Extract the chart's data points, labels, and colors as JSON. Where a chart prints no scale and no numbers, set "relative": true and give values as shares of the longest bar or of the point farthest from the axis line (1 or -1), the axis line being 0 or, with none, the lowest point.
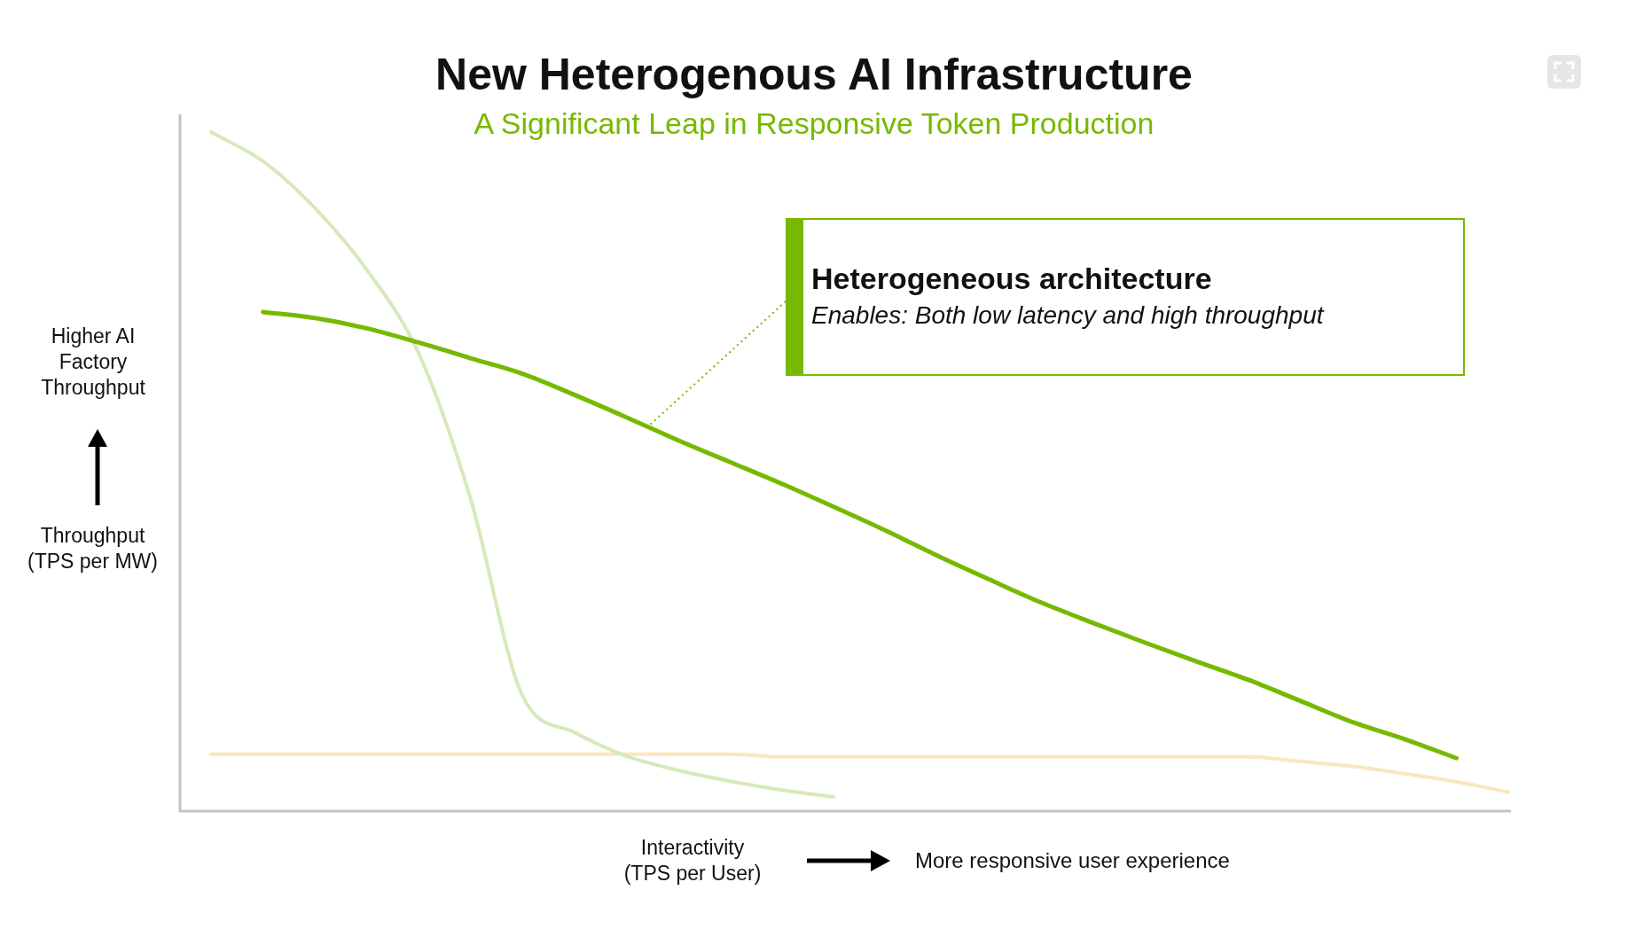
{
  "chart_data": {
    "type": "line",
    "title": "New Heterogenous AI Infrastructure",
    "subtitle": "A Significant Leap in Responsive Token Production",
    "xlabel": "Interactivity (TPS per User)",
    "ylabel": "Throughput (TPS per MW)",
    "annotations": [
      "Higher AI Factory Throughput",
      "More responsive user experience",
      "Heterogeneous architecture",
      "Enables: Both low latency and high throughput"
    ],
    "categories": [
      null,
      null,
      null,
      null,
      null,
      null,
      null,
      null,
      null,
      null,
      null,
      null,
      null,
      null,
      null,
      null,
      null,
      null,
      null,
      null,
      null,
      null,
      null,
      null,
      null,
      null
    ],
    "relative": true,
    "legend": false,
    "marker": "none",
    "tick_labels": false,
    "series": [
      {
        "color": "#fbe6bd",
        "values": [
          0.084,
          0.084,
          0.084,
          0.084,
          0.084,
          0.084,
          0.084,
          0.084,
          0.084,
          0.084,
          0.084,
          0.08,
          0.08,
          0.08,
          0.08,
          0.08,
          0.08,
          0.08,
          0.08,
          0.08,
          0.08,
          0.073,
          0.066,
          0.055,
          0.043,
          0.028
        ]
      },
      {
        "color": "#d6e9bc",
        "values": [
          1,
          0.957,
          0.888,
          0.797,
          0.674,
          0.46,
          0.17,
          0.116,
          0.081,
          0.06,
          0.044,
          0.031,
          0.021,
          null,
          null,
          null,
          null,
          null,
          null,
          null,
          null,
          null,
          null,
          null,
          null,
          null
        ]
      },
      {
        "color": "#76b900",
        "values": [
          null,
          0.735,
          0.726,
          0.711,
          0.69,
          0.667,
          0.644,
          0.613,
          0.58,
          0.546,
          0.514,
          0.482,
          0.448,
          0.413,
          0.376,
          0.341,
          0.307,
          0.277,
          0.248,
          0.22,
          0.193,
          0.162,
          0.131,
          0.106,
          0.078,
          null
        ]
      }
    ]
  }
}
